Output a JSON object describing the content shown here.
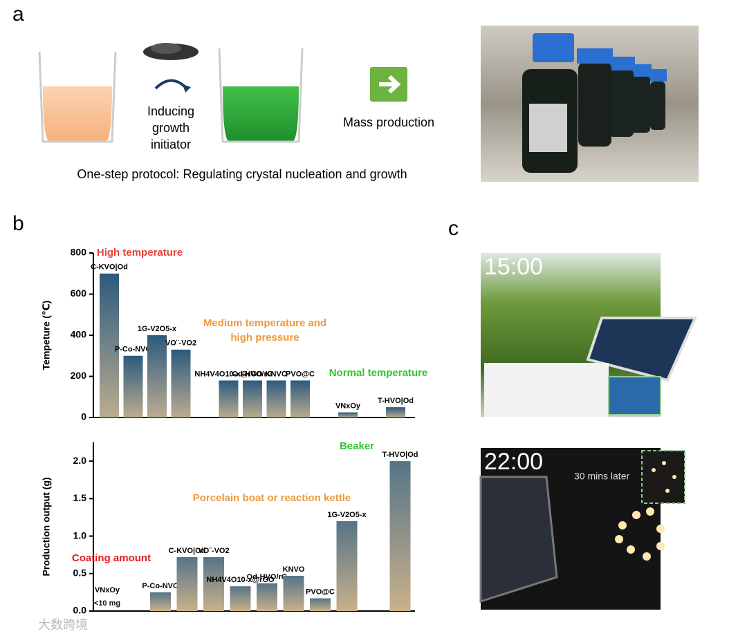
{
  "figure": {
    "panel_labels": [
      "a",
      "b",
      "c"
    ],
    "step_label": [
      "Inducing",
      "growth",
      "initiator"
    ],
    "mass_production": "Mass production",
    "caption": "One-step protocol: Regulating crystal nucleation and growth",
    "times": [
      "15:00",
      "22:00"
    ],
    "inset_note": "30 mins later",
    "watermark": "大数跨境"
  },
  "chart_data": [
    {
      "type": "bar",
      "ylabel": "Tempeture (℃)",
      "categories": [
        "C-KVO|Od",
        "P-Co-NVO",
        "1G-V2O5-x",
        "VO¨-VO2",
        null,
        "NH4V4O10-x@rGO",
        "Od-HVO/rG",
        "KNVO",
        "PVO@C",
        null,
        "VNxOy",
        null,
        "T-HVO|Od"
      ],
      "values": [
        700,
        300,
        400,
        330,
        null,
        180,
        180,
        180,
        180,
        null,
        25,
        null,
        50
      ],
      "gradient": [
        "#2c5a7e",
        "#bcac90"
      ],
      "ylim": [
        0,
        800
      ],
      "yticks": [
        0,
        200,
        400,
        600,
        800
      ],
      "annotations": [
        {
          "lines": [
            "High temperature"
          ],
          "color": "#e8413c"
        },
        {
          "lines": [
            "Medium temperature and",
            "high pressure"
          ],
          "color": "#ee9a3a"
        },
        {
          "lines": [
            "Normal temperature"
          ],
          "color": "#2fc42f"
        }
      ]
    },
    {
      "type": "bar",
      "ylabel": "Production output (g)",
      "categories": [
        "VNxOy",
        null,
        "P-Co-NVO",
        "C-KVO|Od",
        "VO¨-VO2",
        "NH4V4O10-x@rGO",
        "Od-HVO/rG",
        "KNVO",
        "PVO@C",
        "1G-V2O5-x",
        null,
        "T-HVO|Od"
      ],
      "values": [
        null,
        null,
        0.25,
        0.72,
        0.72,
        0.33,
        0.37,
        0.47,
        0.17,
        1.2,
        null,
        2.0
      ],
      "gradient": [
        "#557487",
        "#c9b18a"
      ],
      "ylim": [
        0,
        2.25
      ],
      "yticks": [
        {
          "value": 0,
          "label": "0.0"
        },
        0.5,
        {
          "value": 1,
          "label": "1.0"
        },
        1.5,
        {
          "value": 2,
          "label": "2.0"
        }
      ],
      "annotations": [
        {
          "lines": [
            "Coating amount"
          ],
          "color": "#e02020"
        },
        {
          "lines": [
            "Porcelain boat or reaction kettle"
          ],
          "color": "#ee9a3a"
        },
        {
          "lines": [
            "Beaker"
          ],
          "color": "#2fc42f"
        },
        {
          "lines": [
            "<10 mg"
          ],
          "color": "#111111"
        }
      ]
    }
  ]
}
